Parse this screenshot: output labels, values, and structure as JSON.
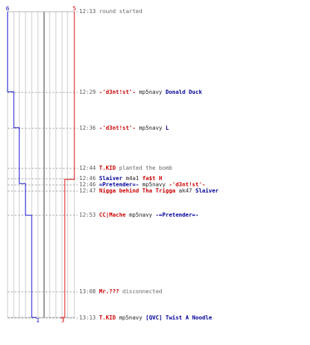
{
  "teams": {
    "blue": {
      "start": "6",
      "end": "1",
      "color": "#0000cc"
    },
    "red": {
      "start": "5",
      "end": "3",
      "color": "#dd0000"
    }
  },
  "events": [
    {
      "time": "12:13",
      "parts": [
        {
          "text": "round started",
          "style": "w"
        }
      ]
    },
    {
      "time": "12:29",
      "parts": [
        {
          "text": "-'d3nt!st'-",
          "style": "red"
        },
        {
          "text": "mp5navy",
          "style": "blk"
        },
        {
          "text": "Donald Duck",
          "style": "blue"
        }
      ]
    },
    {
      "time": "12:36",
      "parts": [
        {
          "text": "-'d3nt!st'-",
          "style": "red"
        },
        {
          "text": "mp5navy",
          "style": "blk"
        },
        {
          "text": "L",
          "style": "blue"
        }
      ]
    },
    {
      "time": "12:44",
      "parts": [
        {
          "text": "T.KID",
          "style": "red"
        },
        {
          "text": "planted the bomb",
          "style": "w"
        }
      ]
    },
    {
      "time": "12:46",
      "parts": [
        {
          "text": "Slaiver",
          "style": "blue"
        },
        {
          "text": "m4a1",
          "style": "blk"
        },
        {
          "text": "fa$t H",
          "style": "red"
        }
      ]
    },
    {
      "time": "12:46",
      "parts": [
        {
          "text": "=Pretender=-",
          "style": "blue"
        },
        {
          "text": "mp5navy",
          "style": "blk"
        },
        {
          "text": "-'d3nt!st'-",
          "style": "red"
        }
      ]
    },
    {
      "time": "12:47",
      "parts": [
        {
          "text": "Nigga behind Tha Trigga",
          "style": "red"
        },
        {
          "text": "ak47",
          "style": "blk"
        },
        {
          "text": "Slaiver",
          "style": "blue"
        }
      ]
    },
    {
      "time": "12:53",
      "parts": [
        {
          "text": "CC|Mache",
          "style": "red"
        },
        {
          "text": "mp5navy",
          "style": "blk"
        },
        {
          "text": "-=Pretender=-",
          "style": "blue"
        }
      ]
    },
    {
      "time": "13:08",
      "parts": [
        {
          "text": "Mr.???",
          "style": "red"
        },
        {
          "text": "disconnected",
          "style": "w"
        }
      ]
    },
    {
      "time": "13:13",
      "parts": [
        {
          "text": "T.KID",
          "style": "red"
        },
        {
          "text": "mp5navy",
          "style": "blk"
        },
        {
          "text": "[QVC] Twist A Noodle",
          "style": "blue"
        }
      ]
    }
  ]
}
